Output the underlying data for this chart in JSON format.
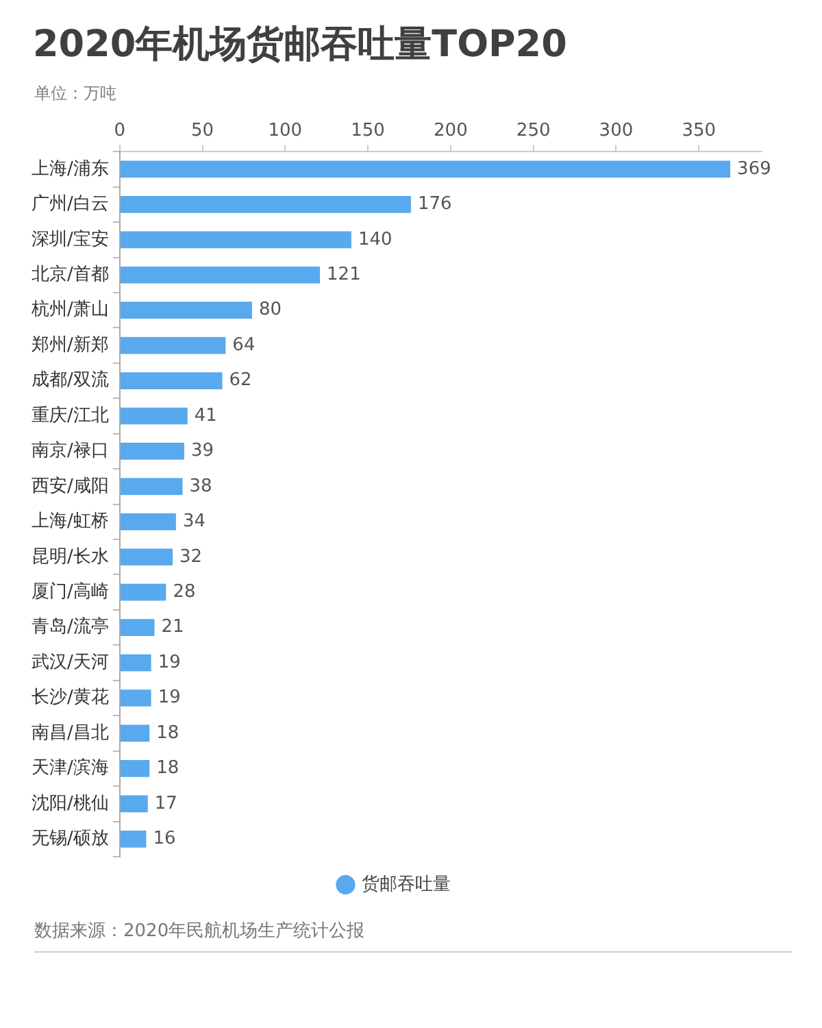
{
  "chart_data": {
    "type": "bar",
    "title": "2020年机场货邮吞吐量TOP20",
    "subtitle": "单位：万吨",
    "orientation": "horizontal",
    "categories": [
      "上海/浦东",
      "广州/白云",
      "深圳/宝安",
      "北京/首都",
      "杭州/萧山",
      "郑州/新郑",
      "成都/双流",
      "重庆/江北",
      "南京/禄口",
      "西安/咸阳",
      "上海/虹桥",
      "昆明/长水",
      "厦门/高崎",
      "青岛/流亭",
      "武汉/天河",
      "长沙/黄花",
      "南昌/昌北",
      "天津/滨海",
      "沈阳/桃仙",
      "无锡/硕放"
    ],
    "series": [
      {
        "name": "货邮吞吐量",
        "color": "#58a9ee",
        "values": [
          369,
          176,
          140,
          121,
          80,
          64,
          62,
          41,
          39,
          38,
          34,
          32,
          28,
          21,
          19,
          19,
          18,
          18,
          17,
          16
        ]
      }
    ],
    "xlim": [
      0,
      388
    ],
    "xticks": [
      0,
      50,
      100,
      150,
      200,
      250,
      300,
      350
    ],
    "grid": false,
    "legend": "bottom",
    "data_labels": true,
    "annotations": [
      "数据来源：2020年民航机场生产统计公报"
    ]
  }
}
